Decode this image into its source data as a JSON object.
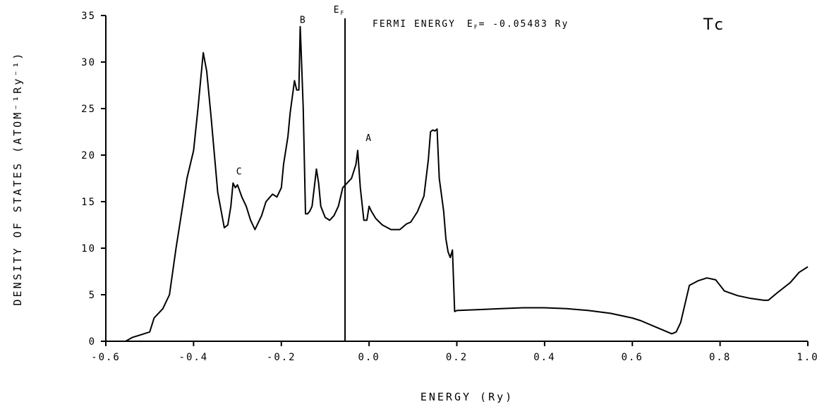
{
  "chart_data": {
    "type": "line",
    "xlabel": "ENERGY (Ry)",
    "ylabel": "DENSITY OF STATES (ATOM⁻¹Ry⁻¹)",
    "xlim": [
      -0.6,
      1.0
    ],
    "ylim": [
      0,
      35
    ],
    "x_ticks": [
      -0.6,
      -0.4,
      -0.2,
      0.0,
      0.2,
      0.4,
      0.6,
      0.8,
      1.0
    ],
    "x_tick_labels": [
      "-0.6",
      "-0.4",
      "-0.2",
      "0.0",
      "0.2",
      "0.4",
      "0.6",
      "0.8",
      "1.0"
    ],
    "y_ticks": [
      0,
      5,
      10,
      15,
      20,
      25,
      30,
      35
    ],
    "y_tick_labels": [
      "0",
      "5",
      "10",
      "15",
      "20",
      "25",
      "30",
      "35"
    ],
    "grid": false,
    "fermi_energy": -0.05483,
    "fermi_line_label": "E",
    "fermi_line_label_sub": "F",
    "fermi_text_prefix": "FERMI ENERGY",
    "fermi_text_value": "E",
    "fermi_text_sub": "F",
    "fermi_text_suffix": "= -0.05483 Ry",
    "element": "Tc",
    "annotations": [
      {
        "text": "A",
        "x": 0.0,
        "y": 21.5
      },
      {
        "text": "B",
        "x": -0.15,
        "y": 34.2
      },
      {
        "text": "C",
        "x": -0.295,
        "y": 17.9
      }
    ],
    "series": [
      {
        "x": [
          -0.555,
          -0.54,
          -0.52,
          -0.5,
          -0.49,
          -0.47,
          -0.455,
          -0.44,
          -0.43,
          -0.415,
          -0.4,
          -0.39,
          -0.383,
          -0.378,
          -0.37,
          -0.36,
          -0.345,
          -0.33,
          -0.322,
          -0.315,
          -0.31,
          -0.305,
          -0.3,
          -0.29,
          -0.28,
          -0.27,
          -0.26,
          -0.255,
          -0.245,
          -0.235,
          -0.22,
          -0.21,
          -0.2,
          -0.195,
          -0.19,
          -0.185,
          -0.18,
          -0.17,
          -0.165,
          -0.16,
          -0.157,
          -0.155,
          -0.15,
          -0.145,
          -0.14,
          -0.135,
          -0.13,
          -0.12,
          -0.115,
          -0.11,
          -0.1,
          -0.09,
          -0.08,
          -0.07,
          -0.06,
          -0.05,
          -0.04,
          -0.03,
          -0.026,
          -0.02,
          -0.012,
          -0.005,
          0.0,
          0.005,
          0.015,
          0.03,
          0.05,
          0.07,
          0.085,
          0.095,
          0.11,
          0.125,
          0.135,
          0.14,
          0.145,
          0.15,
          0.155,
          0.16,
          0.17,
          0.175,
          0.18,
          0.185,
          0.19,
          0.195,
          0.2,
          0.25,
          0.3,
          0.35,
          0.4,
          0.45,
          0.5,
          0.55,
          0.6,
          0.62,
          0.65,
          0.68,
          0.69,
          0.7,
          0.71,
          0.72,
          0.73,
          0.75,
          0.77,
          0.79,
          0.81,
          0.84,
          0.87,
          0.9,
          0.91,
          0.93,
          0.96,
          0.98,
          1.0
        ],
        "y": [
          0.0,
          0.4,
          0.7,
          1.0,
          2.5,
          3.5,
          5.0,
          10.0,
          13.0,
          17.5,
          20.5,
          25.0,
          28.5,
          31.0,
          29.0,
          24.0,
          16.0,
          12.2,
          12.5,
          14.5,
          17.0,
          16.5,
          16.8,
          15.5,
          14.5,
          13.0,
          12.0,
          12.5,
          13.5,
          15.0,
          15.8,
          15.5,
          16.5,
          19.0,
          20.5,
          22.0,
          24.5,
          28.0,
          27.0,
          27.0,
          33.8,
          31.5,
          25.0,
          13.7,
          13.7,
          14.0,
          14.5,
          18.5,
          17.0,
          14.5,
          13.3,
          13.0,
          13.5,
          14.5,
          16.5,
          17.0,
          17.5,
          19.0,
          20.5,
          16.5,
          13.0,
          13.0,
          14.5,
          14.0,
          13.2,
          12.5,
          12.0,
          12.0,
          12.6,
          12.8,
          13.9,
          15.6,
          19.5,
          22.5,
          22.7,
          22.6,
          22.8,
          17.5,
          14.0,
          11.0,
          9.6,
          9.0,
          9.8,
          3.2,
          3.3,
          3.4,
          3.5,
          3.6,
          3.6,
          3.5,
          3.3,
          3.0,
          2.5,
          2.2,
          1.6,
          1.0,
          0.8,
          1.0,
          2.0,
          4.0,
          6.0,
          6.5,
          6.8,
          6.6,
          5.4,
          4.9,
          4.6,
          4.4,
          4.4,
          5.2,
          6.3,
          7.4,
          8.0
        ]
      }
    ]
  }
}
